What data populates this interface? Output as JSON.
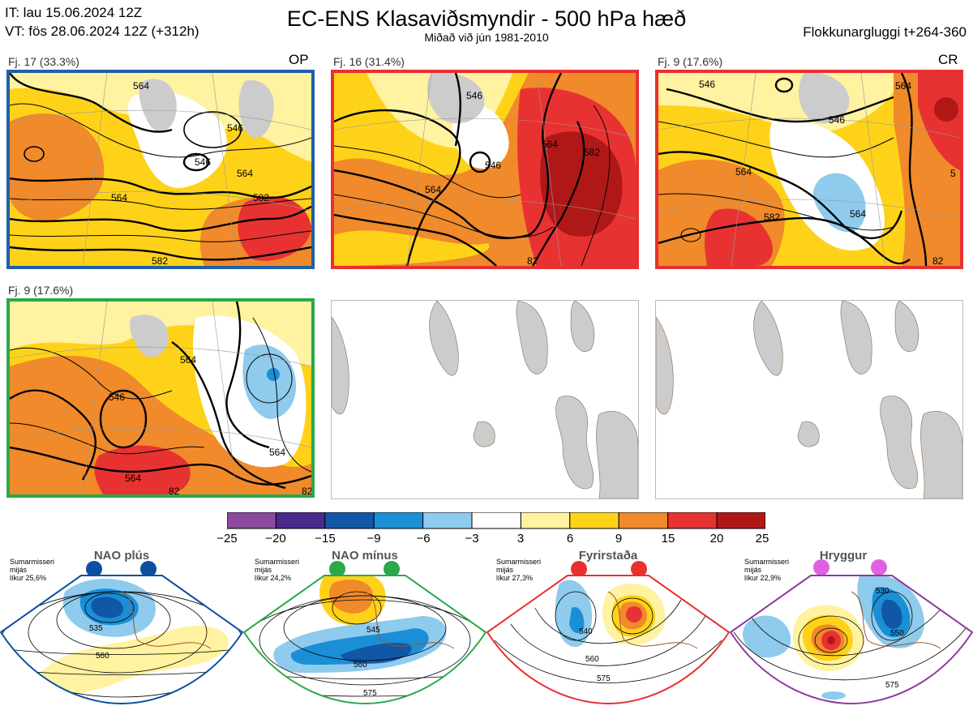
{
  "header": {
    "it_line": "IT: lau 15.06.2024 12Z",
    "vt_line": "VT: fös 28.06.2024 12Z  (+312h)",
    "title": "EC-ENS Klasaviðsmyndir - 500 hPa hæð",
    "subtitle": "Miðað við jún 1981-2010",
    "window": "Flokkunargluggi t+264-360"
  },
  "panels": [
    {
      "label": "Fj. 17 (33.3%)",
      "tag": "OP",
      "border": "#1f5fa8",
      "contours": [
        "564",
        "546",
        "546",
        "564",
        "582",
        "564",
        "582"
      ]
    },
    {
      "label": "Fj. 16 (31.4%)",
      "tag": "",
      "border": "#e83030",
      "contours": [
        "546",
        "546",
        "564",
        "582",
        "564",
        "82"
      ]
    },
    {
      "label": "Fj. 9 (17.6%)",
      "tag": "CR",
      "border": "#e83030",
      "contours": [
        "546",
        "546",
        "564",
        "564",
        "582",
        "564",
        "82",
        "5"
      ]
    },
    {
      "label": "Fj. 9 (17.6%)",
      "tag": "",
      "border": "#2aa84a",
      "contours": [
        "546",
        "564",
        "564",
        "82",
        "564",
        "82"
      ]
    },
    {
      "label": "",
      "tag": "",
      "border": "#bbbbbb",
      "contours": []
    },
    {
      "label": "",
      "tag": "",
      "border": "#bbbbbb",
      "contours": []
    }
  ],
  "colorbar": {
    "labels": [
      "−25",
      "−20",
      "−15",
      "−9",
      "−6",
      "−3",
      "3",
      "6",
      "9",
      "15",
      "20",
      "25"
    ],
    "colors": [
      "#8b4a9e",
      "#4a2a8c",
      "#1257a6",
      "#1a8fd6",
      "#8ecbed",
      "#ffffff",
      "#fff2a0",
      "#ffd21a",
      "#f08a2a",
      "#e83232",
      "#b01818"
    ]
  },
  "regimes": [
    {
      "name": "NAO plús",
      "note_1": "Sumarmisseri",
      "note_2": "mijás",
      "note_3": "líkur 25,6%",
      "color": "#0a4fa0",
      "contours": [
        "535",
        "560"
      ]
    },
    {
      "name": "NAO mínus",
      "note_1": "Sumarmisseri",
      "note_2": "mijás",
      "note_3": "líkur 24,2%",
      "color": "#2aa84a",
      "contours": [
        "545",
        "560",
        "575"
      ]
    },
    {
      "name": "Fyrirstaða",
      "note_1": "Sumarmisseri",
      "note_2": "mijás",
      "note_3": "líkur 27,3%",
      "color": "#e83030",
      "contours": [
        "540",
        "560",
        "575"
      ]
    },
    {
      "name": "Hryggur",
      "note_1": "Sumarmisseri",
      "note_2": "mijás",
      "note_3": "líkur 22,9%",
      "color": "#e060e0",
      "contours": [
        "530",
        "550",
        "575"
      ]
    }
  ]
}
